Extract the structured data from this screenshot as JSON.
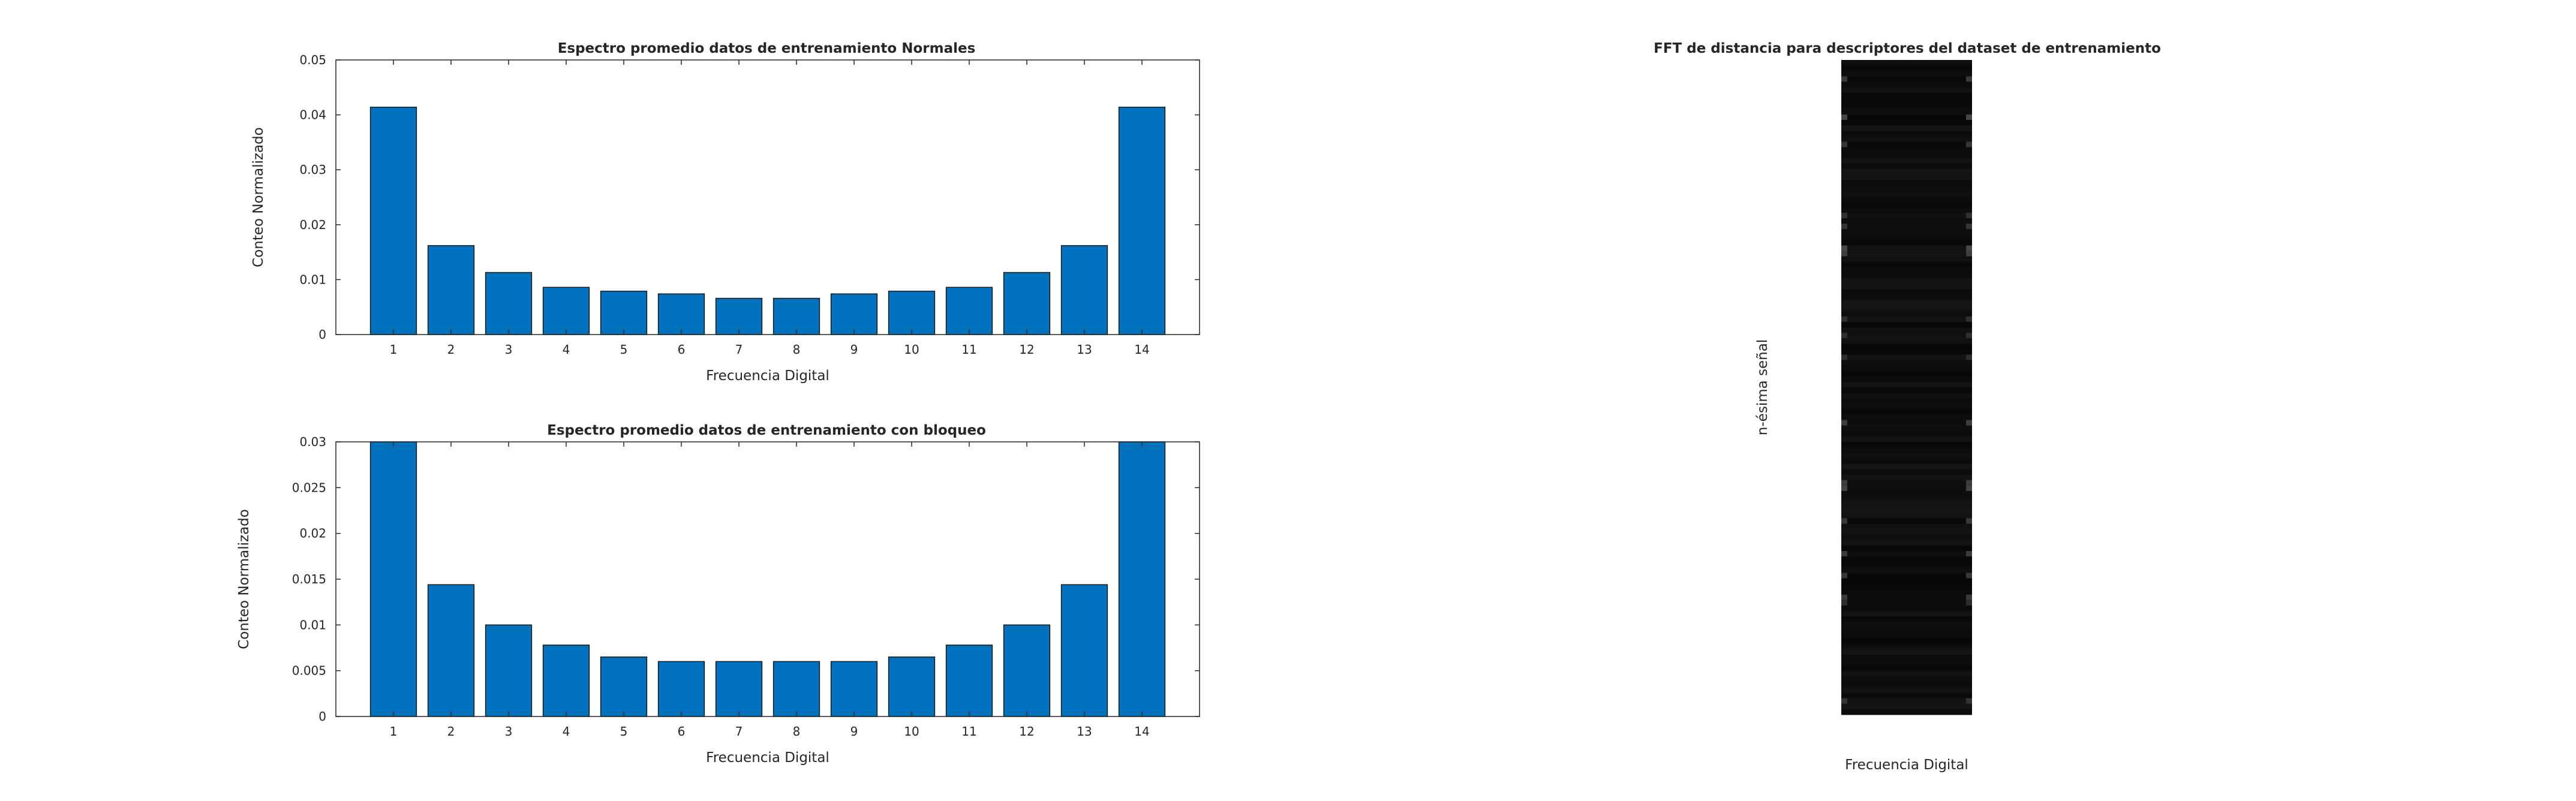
{
  "window": {
    "title": ""
  },
  "colors": {
    "bar_fill": "#0072bd",
    "bar_edge": "#1a1a1a",
    "axis": "#262626",
    "heatmap_bg": "#060606"
  },
  "chart_data": [
    {
      "type": "bar",
      "title": "Espectro promedio datos de entrenamiento Normales",
      "xlabel": "Frecuencia Digital",
      "ylabel": "Conteo Normalizado",
      "categories": [
        "1",
        "2",
        "3",
        "4",
        "5",
        "6",
        "7",
        "8",
        "9",
        "10",
        "11",
        "12",
        "13",
        "14"
      ],
      "values": [
        0.0414,
        0.0162,
        0.0113,
        0.0086,
        0.0079,
        0.0074,
        0.0066,
        0.0066,
        0.0074,
        0.0079,
        0.0086,
        0.0113,
        0.0162,
        0.0414
      ],
      "ylim": [
        0,
        0.05
      ],
      "yticks": [
        0,
        0.01,
        0.02,
        0.03,
        0.04,
        0.05
      ],
      "ytick_labels": [
        "0",
        "0.01",
        "0.02",
        "0.03",
        "0.04",
        "0.05"
      ],
      "grid": false,
      "legend": "none"
    },
    {
      "type": "bar",
      "title": "Espectro promedio datos de entrenamiento con bloqueo",
      "xlabel": "Frecuencia Digital",
      "ylabel": "Conteo Normalizado",
      "categories": [
        "1",
        "2",
        "3",
        "4",
        "5",
        "6",
        "7",
        "8",
        "9",
        "10",
        "11",
        "12",
        "13",
        "14"
      ],
      "values": [
        0.03,
        0.0144,
        0.01,
        0.0078,
        0.0065,
        0.006,
        0.006,
        0.006,
        0.006,
        0.0065,
        0.0078,
        0.01,
        0.0144,
        0.03
      ],
      "ylim": [
        0,
        0.03
      ],
      "yticks": [
        0,
        0.005,
        0.01,
        0.015,
        0.02,
        0.025,
        0.03
      ],
      "ytick_labels": [
        "0",
        "0.005",
        "0.01",
        "0.015",
        "0.02",
        "0.025",
        "0.03"
      ],
      "grid": false,
      "legend": "none"
    },
    {
      "type": "heatmap",
      "title": "FFT de distancia para descriptores del dataset de entrenamiento",
      "xlabel": "Frecuencia Digital",
      "ylabel": "n-ésima señal",
      "colormap": "gray",
      "description_values": "mostly near-black intensities with faint lighter horizontal bands"
    }
  ]
}
